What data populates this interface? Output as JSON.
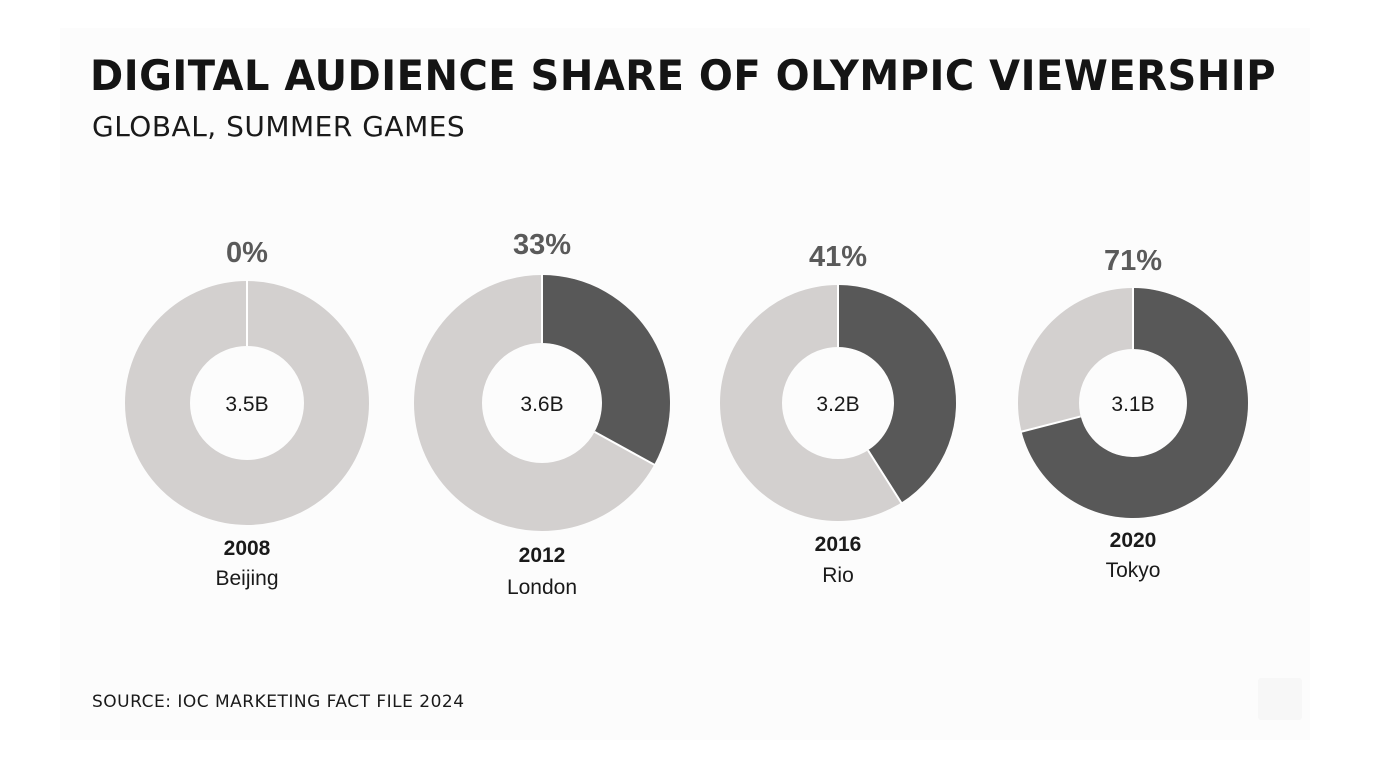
{
  "header": {
    "title": "DIGITAL AUDIENCE SHARE OF OLYMPIC VIEWERSHIP",
    "subtitle": "GLOBAL, SUMMER GAMES"
  },
  "footer": {
    "source": "SOURCE: IOC MARKETING FACT FILE 2024"
  },
  "colors": {
    "digital": "#585858",
    "other": "#d3d0cf",
    "divider": "#ffffff"
  },
  "chart_data": {
    "type": "pie",
    "variant": "donut",
    "title": "DIGITAL AUDIENCE SHARE OF OLYMPIC VIEWERSHIP",
    "subtitle": "GLOBAL, SUMMER GAMES",
    "charts": [
      {
        "year": "2008",
        "city": "Beijing",
        "total_label": "3.5B",
        "digital_share": 0,
        "label": "0%"
      },
      {
        "year": "2012",
        "city": "London",
        "total_label": "3.6B",
        "digital_share": 33,
        "label": "33%"
      },
      {
        "year": "2016",
        "city": "Rio",
        "total_label": "3.2B",
        "digital_share": 41,
        "label": "41%"
      },
      {
        "year": "2020",
        "city": "Tokyo",
        "total_label": "3.1B",
        "digital_share": 71,
        "label": "71%"
      }
    ]
  }
}
